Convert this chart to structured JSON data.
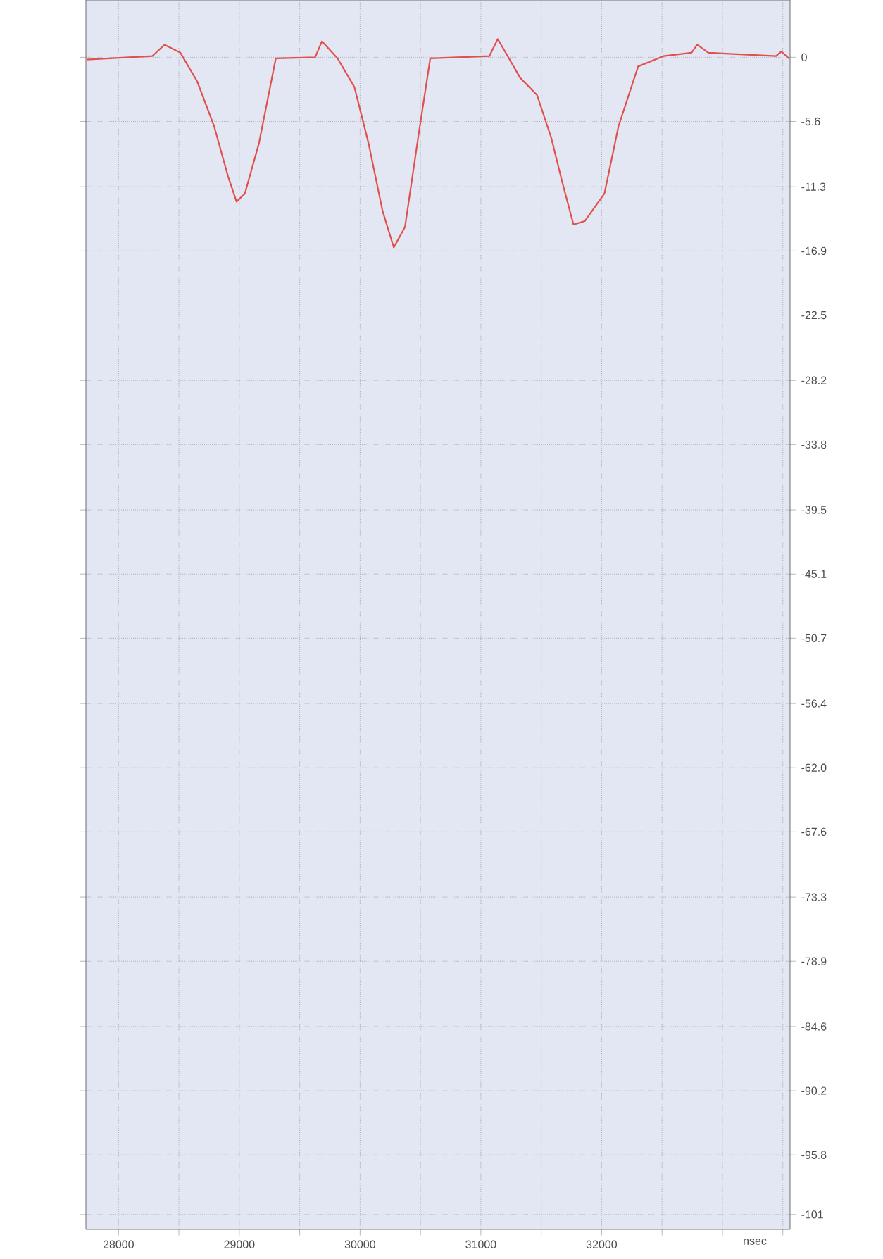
{
  "chart_data": {
    "type": "line",
    "xlabel": "nsec",
    "color": "#e0504c",
    "grid": true,
    "marker": "none",
    "line_style": "solid",
    "x": [
      27735,
      28279,
      28381,
      28512,
      28651,
      28791,
      28907,
      28977,
      29046,
      29163,
      29302,
      29628,
      29684,
      29814,
      29953,
      30070,
      30186,
      30279,
      30372,
      30488,
      30581,
      31070,
      31140,
      31233,
      31326,
      31465,
      31582,
      31674,
      31767,
      31860,
      32023,
      32140,
      32302,
      32512,
      32744,
      32791,
      32884,
      33442,
      33489,
      33550
    ],
    "values": [
      -0.2,
      0.1,
      1.1,
      0.4,
      -2.1,
      -6.0,
      -10.4,
      -12.6,
      -11.9,
      -7.5,
      -0.1,
      0,
      1.4,
      -0.1,
      -2.6,
      -7.5,
      -13.4,
      -16.6,
      -14.8,
      -6.5,
      -0.1,
      0.1,
      1.6,
      -0.1,
      -1.8,
      -3.3,
      -7.0,
      -10.9,
      -14.6,
      -14.3,
      -11.9,
      -6.0,
      -0.8,
      0.1,
      0.4,
      1.1,
      0.4,
      0.1,
      0.5,
      -0.1
    ],
    "xlim": [
      27730,
      33560
    ],
    "ylim": [
      -102.3,
      5
    ],
    "xticks": [
      28000,
      {
        "value": 28500,
        "label": null
      },
      29000,
      {
        "value": 29500,
        "label": null
      },
      30000,
      {
        "value": 30500,
        "label": null
      },
      31000,
      {
        "value": 31500,
        "label": null
      },
      32000,
      {
        "value": 32500,
        "label": null
      },
      {
        "value": 33000,
        "label": null
      },
      {
        "value": 33500,
        "label": null
      }
    ],
    "yticks": [
      0,
      -5.6,
      -11.3,
      -16.9,
      -22.5,
      -28.2,
      -33.8,
      -39.5,
      -45.1,
      -50.7,
      -56.4,
      {
        "value": -62.0,
        "label": "-62.0"
      },
      -67.6,
      -73.3,
      -78.9,
      -84.6,
      -90.2,
      -95.8,
      -101
    ]
  }
}
